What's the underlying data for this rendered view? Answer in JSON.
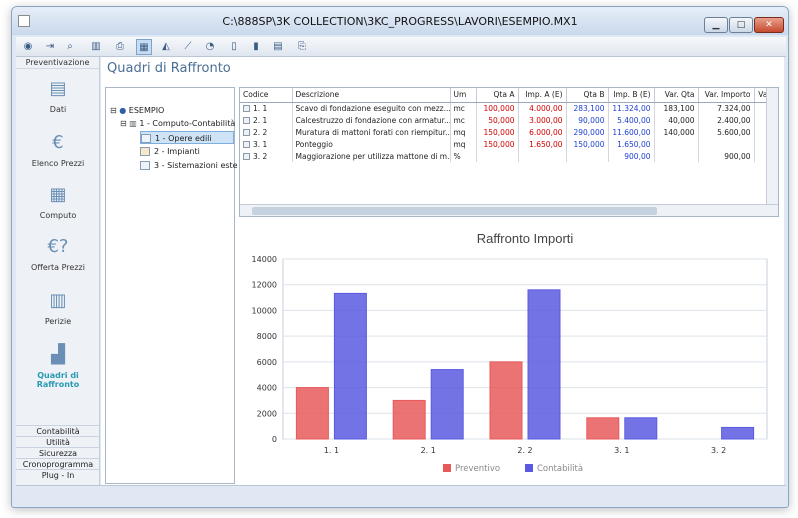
{
  "window": {
    "title": "C:\\888SP\\3K COLLECTION\\3KC_PROGRESS\\LAVORI\\ESEMPIO.MX1"
  },
  "sidebar": {
    "header": "Preventivazione",
    "items": [
      {
        "label": "Dati",
        "icon": "document-icon"
      },
      {
        "label": "Elenco Prezzi",
        "icon": "euro-coins-icon"
      },
      {
        "label": "Computo",
        "icon": "calculator-icon"
      },
      {
        "label": "Offerta Prezzi",
        "icon": "euro-question-icon"
      },
      {
        "label": "Perizie",
        "icon": "grid-document-icon"
      },
      {
        "label": "Quadri di Raffronto",
        "icon": "bar-chart-icon"
      }
    ],
    "bottom": [
      "Contabilità",
      "Utilità",
      "Sicurezza",
      "Cronoprogramma",
      "Plug - In"
    ]
  },
  "page_title": "Quadri di Raffronto",
  "tree": {
    "root": "ESEMPIO",
    "child": "1 - Computo-Contabilità",
    "leaves": [
      "1 - Opere edili",
      "2 - Impianti",
      "3 - Sistemazioni este"
    ]
  },
  "table": {
    "headers": [
      "Codice",
      "Descrizione",
      "Um",
      "Qta A",
      "Imp. A (E)",
      "Qta B",
      "Imp. B (E)",
      "Var. Qta",
      "Var. Importo",
      "Var"
    ],
    "rows": [
      [
        "1. 1",
        "Scavo di fondazione eseguito con mezz...",
        "mc",
        "100,000",
        "4.000,00",
        "283,100",
        "11.324,00",
        "183,100",
        "7.324,00"
      ],
      [
        "2. 1",
        "Calcestruzzo di fondazione con armatur...",
        "mc",
        "50,000",
        "3.000,00",
        "90,000",
        "5.400,00",
        "40,000",
        "2.400,00"
      ],
      [
        "2. 2",
        "Muratura di mattoni forati con riempitur...",
        "mq",
        "150,000",
        "6.000,00",
        "290,000",
        "11.600,00",
        "140,000",
        "5.600,00"
      ],
      [
        "3. 1",
        "Ponteggio",
        "mq",
        "150,000",
        "1.650,00",
        "150,000",
        "1.650,00",
        "",
        ""
      ],
      [
        "3. 2",
        "Maggiorazione per utilizza mattone di m...",
        "%",
        "",
        "",
        "",
        "900,00",
        "",
        "900,00"
      ]
    ]
  },
  "colors": {
    "preventivo": "#e85a5a",
    "contabilita": "#5a5ae0",
    "accent": "#2a9ab1"
  },
  "chart_data": {
    "type": "bar",
    "title": "Raffronto Importi",
    "categories": [
      "1. 1",
      "2. 1",
      "2. 2",
      "3. 1",
      "3. 2"
    ],
    "series": [
      {
        "name": "Preventivo",
        "values": [
          4000,
          3000,
          6000,
          1650,
          0
        ]
      },
      {
        "name": "Contabilità",
        "values": [
          11324,
          5400,
          11600,
          1650,
          900
        ]
      }
    ],
    "yticks": [
      "0",
      "2000",
      "4000",
      "6000",
      "8000",
      "10000",
      "12000",
      "14000"
    ],
    "ylim": [
      0,
      14000
    ],
    "grid": true,
    "legend": "bottom"
  }
}
